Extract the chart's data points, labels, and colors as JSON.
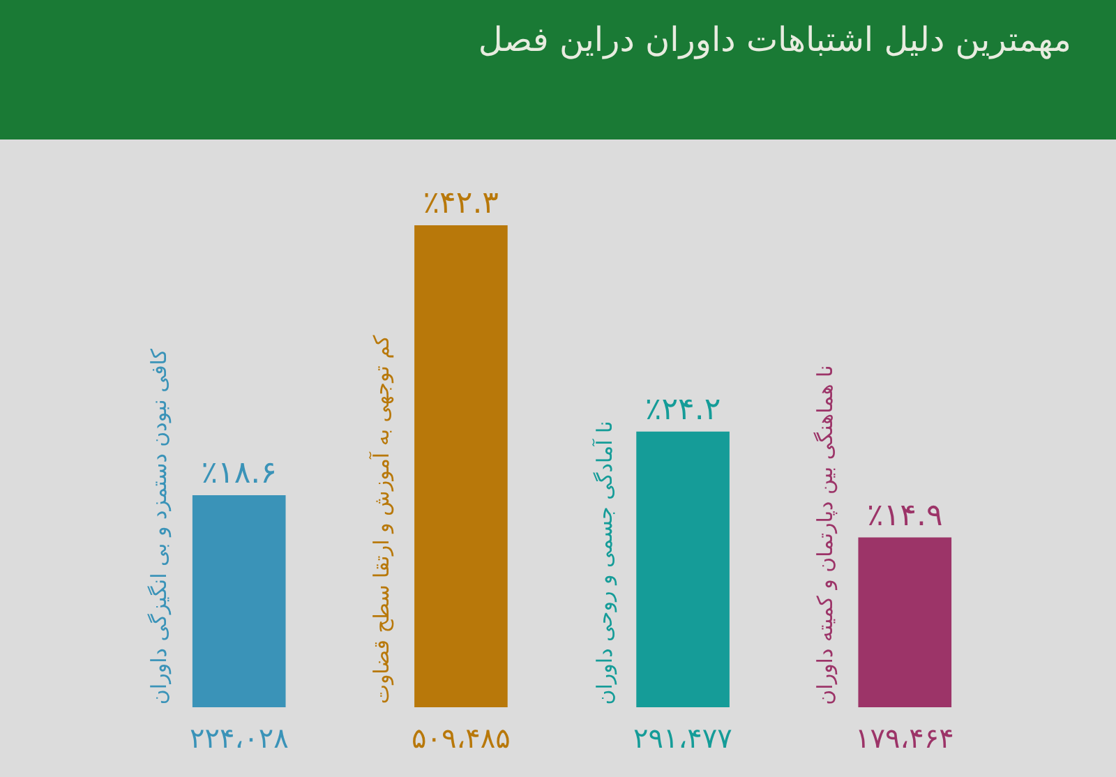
{
  "chart_data": {
    "type": "bar",
    "title": "مهمترین دلیل اشتباهات داوران دراین فصل",
    "categories": [
      "کافی نبودن دستمزد و بی انگیزگی داوران",
      "کم توجهی به آموزش و ارتقا سطح قضاوت",
      "نا آمادگی جسمی و روحی داوران",
      "نا هماهنگی بین دپارتمان و کمیته داوران"
    ],
    "values": [
      18.6,
      42.3,
      24.2,
      14.9
    ],
    "colors": [
      "#3a93b8",
      "#b8780a",
      "#159c98",
      "#9c3468"
    ],
    "value_labels": [
      "٪۱۸.۶",
      "٪۴۲.۳",
      "٪۲۴.۲",
      "٪۱۴.۹"
    ],
    "annotations": [
      "۲۲۴،۰۲۸",
      "۵۰۹،۴۸۵",
      "۲۹۱،۴۷۷",
      "۱۷۹،۴۶۴"
    ]
  }
}
